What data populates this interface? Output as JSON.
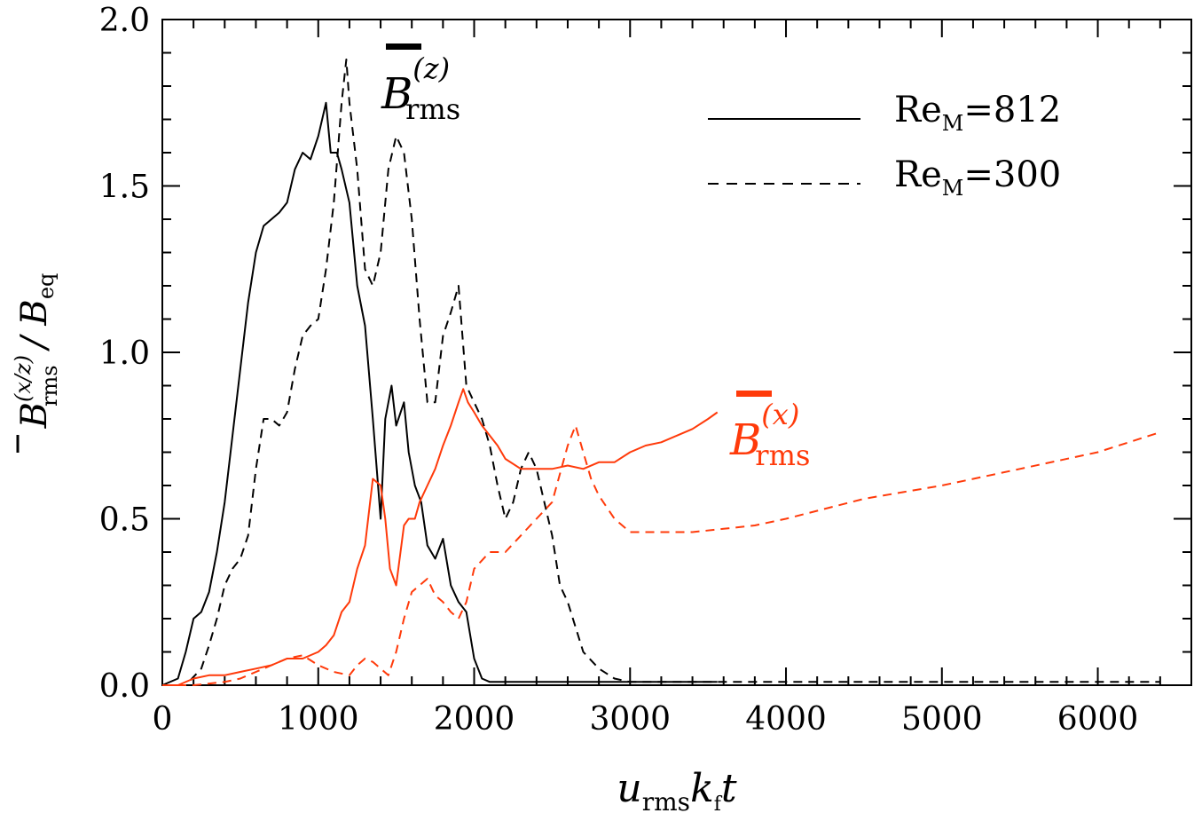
{
  "chart_data": {
    "type": "line",
    "xlabel": {
      "main": "u",
      "sub1": "rms",
      "main2": "k",
      "sub2": "f",
      "main3": "t"
    },
    "ylabel": {
      "main": "B",
      "sup": "(x/z)",
      "sub": "rms",
      "rest": " / B",
      "sub2": "eq"
    },
    "xlim": [
      0,
      6600
    ],
    "ylim": [
      0,
      2.0
    ],
    "x_ticks": [
      0,
      1000,
      2000,
      3000,
      4000,
      5000,
      6000
    ],
    "x_tick_labels": [
      "0",
      "1000",
      "2000",
      "3000",
      "4000",
      "5000",
      "6000"
    ],
    "y_ticks": [
      0.0,
      0.5,
      1.0,
      1.5,
      2.0
    ],
    "y_tick_labels": [
      "0.0",
      "0.5",
      "1.0",
      "1.5",
      "2.0"
    ],
    "grid": false,
    "legend": {
      "placement": "top-right",
      "entries": [
        {
          "text": "Re",
          "sub": "M",
          "value": "=812",
          "style": "solid"
        },
        {
          "text": "Re",
          "sub": "M",
          "value": "=300",
          "style": "dashed"
        }
      ]
    },
    "annotations": [
      {
        "id": "bz",
        "main": "B",
        "sup": "(z)",
        "sub": "rms",
        "color": "#000000"
      },
      {
        "id": "bx",
        "main": "B",
        "sup": "(x)",
        "sub": "rms",
        "color": "#ff3a0a"
      }
    ],
    "series": [
      {
        "component": "z",
        "re_m": "812",
        "style": "solid",
        "color": "#000000",
        "x": [
          0,
          100,
          150,
          200,
          250,
          300,
          350,
          400,
          450,
          500,
          550,
          600,
          650,
          700,
          750,
          800,
          850,
          900,
          950,
          1000,
          1050,
          1080,
          1120,
          1150,
          1200,
          1250,
          1300,
          1350,
          1400,
          1430,
          1470,
          1500,
          1550,
          1580,
          1620,
          1660,
          1700,
          1750,
          1800,
          1850,
          1900,
          1950,
          2000,
          2050,
          2100,
          2200,
          2400,
          2600,
          2800,
          3000,
          3200,
          3400,
          3560
        ],
        "y": [
          0.0,
          0.02,
          0.1,
          0.2,
          0.22,
          0.28,
          0.4,
          0.55,
          0.75,
          0.95,
          1.15,
          1.3,
          1.38,
          1.4,
          1.42,
          1.45,
          1.55,
          1.6,
          1.58,
          1.65,
          1.75,
          1.6,
          1.6,
          1.55,
          1.45,
          1.2,
          1.08,
          0.8,
          0.5,
          0.8,
          0.9,
          0.78,
          0.85,
          0.7,
          0.6,
          0.55,
          0.42,
          0.38,
          0.44,
          0.3,
          0.25,
          0.22,
          0.08,
          0.02,
          0.01,
          0.01,
          0.01,
          0.01,
          0.01,
          0.01,
          0.01,
          0.01,
          0.01
        ]
      },
      {
        "component": "z",
        "re_m": "300",
        "style": "dashed",
        "color": "#000000",
        "x": [
          0,
          150,
          250,
          300,
          350,
          400,
          450,
          500,
          550,
          600,
          650,
          700,
          750,
          800,
          850,
          900,
          950,
          1000,
          1050,
          1100,
          1150,
          1180,
          1200,
          1250,
          1300,
          1350,
          1400,
          1450,
          1500,
          1550,
          1600,
          1650,
          1700,
          1750,
          1800,
          1850,
          1900,
          1950,
          2000,
          2050,
          2100,
          2150,
          2200,
          2250,
          2300,
          2350,
          2400,
          2450,
          2500,
          2550,
          2600,
          2700,
          2800,
          2900,
          3000,
          3200,
          4000,
          5000,
          6000,
          6400
        ],
        "y": [
          0.0,
          0.0,
          0.05,
          0.12,
          0.2,
          0.3,
          0.35,
          0.38,
          0.45,
          0.65,
          0.8,
          0.8,
          0.78,
          0.82,
          0.95,
          1.05,
          1.08,
          1.1,
          1.25,
          1.45,
          1.75,
          1.88,
          1.75,
          1.55,
          1.25,
          1.2,
          1.3,
          1.55,
          1.65,
          1.6,
          1.4,
          1.1,
          0.85,
          0.85,
          1.05,
          1.12,
          1.2,
          0.9,
          0.85,
          0.8,
          0.72,
          0.6,
          0.5,
          0.55,
          0.65,
          0.7,
          0.65,
          0.55,
          0.45,
          0.3,
          0.25,
          0.1,
          0.05,
          0.02,
          0.01,
          0.01,
          0.01,
          0.01,
          0.01,
          0.01
        ]
      },
      {
        "component": "x",
        "re_m": "812",
        "style": "solid",
        "color": "#ff3a0a",
        "x": [
          0,
          100,
          200,
          300,
          400,
          500,
          600,
          700,
          800,
          900,
          1000,
          1050,
          1100,
          1150,
          1200,
          1250,
          1300,
          1350,
          1400,
          1430,
          1460,
          1500,
          1550,
          1580,
          1620,
          1650,
          1700,
          1750,
          1800,
          1850,
          1900,
          1930,
          1960,
          2000,
          2050,
          2100,
          2150,
          2200,
          2300,
          2400,
          2500,
          2600,
          2700,
          2800,
          2900,
          3000,
          3100,
          3200,
          3300,
          3400,
          3500,
          3560
        ],
        "y": [
          0.0,
          0.0,
          0.02,
          0.03,
          0.03,
          0.04,
          0.05,
          0.06,
          0.08,
          0.08,
          0.1,
          0.12,
          0.15,
          0.22,
          0.25,
          0.35,
          0.42,
          0.62,
          0.6,
          0.5,
          0.35,
          0.3,
          0.48,
          0.5,
          0.5,
          0.55,
          0.6,
          0.65,
          0.72,
          0.78,
          0.85,
          0.89,
          0.85,
          0.82,
          0.78,
          0.75,
          0.72,
          0.68,
          0.65,
          0.65,
          0.65,
          0.66,
          0.65,
          0.67,
          0.67,
          0.7,
          0.72,
          0.73,
          0.75,
          0.77,
          0.8,
          0.82
        ]
      },
      {
        "component": "x",
        "re_m": "300",
        "style": "dashed",
        "color": "#ff3a0a",
        "x": [
          0,
          200,
          400,
          500,
          600,
          700,
          800,
          900,
          1000,
          1100,
          1200,
          1250,
          1300,
          1350,
          1400,
          1450,
          1500,
          1550,
          1600,
          1650,
          1700,
          1750,
          1800,
          1850,
          1900,
          1950,
          2000,
          2100,
          2200,
          2300,
          2400,
          2500,
          2600,
          2650,
          2700,
          2750,
          2800,
          2900,
          3000,
          3100,
          3200,
          3400,
          3600,
          3800,
          4000,
          4500,
          5000,
          5500,
          6000,
          6400
        ],
        "y": [
          0.0,
          0.0,
          0.01,
          0.02,
          0.04,
          0.06,
          0.08,
          0.09,
          0.06,
          0.04,
          0.03,
          0.06,
          0.08,
          0.07,
          0.05,
          0.03,
          0.1,
          0.2,
          0.28,
          0.3,
          0.32,
          0.27,
          0.25,
          0.22,
          0.2,
          0.25,
          0.35,
          0.4,
          0.4,
          0.45,
          0.5,
          0.55,
          0.72,
          0.78,
          0.7,
          0.62,
          0.57,
          0.5,
          0.46,
          0.46,
          0.46,
          0.46,
          0.47,
          0.48,
          0.5,
          0.56,
          0.6,
          0.65,
          0.7,
          0.76
        ]
      }
    ]
  }
}
